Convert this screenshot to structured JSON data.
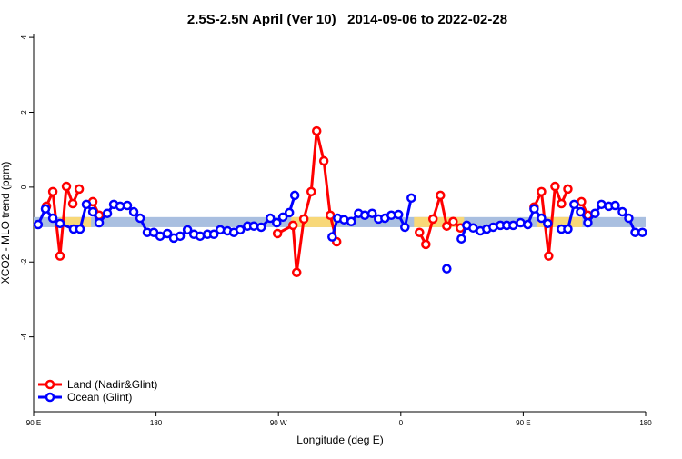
{
  "chart_data": {
    "type": "line",
    "title": "2.5S-2.5N April (Ver 10)   2014-09-06 to 2022-02-28",
    "x_label": "Longitude (deg E)",
    "y_label": "XCO2 - MLO trend (ppm)",
    "xlim": [
      90,
      540
    ],
    "ylim": [
      -6,
      4.1
    ],
    "xticks": [
      {
        "value": 90,
        "label": "90 E"
      },
      {
        "value": 180,
        "label": "180"
      },
      {
        "value": 270,
        "label": "90 W"
      },
      {
        "value": 360,
        "label": "0"
      },
      {
        "value": 450,
        "label": "90 E"
      },
      {
        "value": 540,
        "label": "180"
      }
    ],
    "yticks": [
      4,
      2,
      0,
      -2,
      -4
    ],
    "legend": "bottom-left",
    "bands": [
      {
        "color": "#a9bfe0",
        "x": [
          90,
          540
        ],
        "y": [
          -1.07,
          -0.8
        ]
      },
      {
        "color": "#f8d878",
        "x": [
          108.7,
          132.2
        ],
        "y": [
          -1.07,
          -0.8
        ]
      },
      {
        "color": "#f8d878",
        "x": [
          279.4,
          312.8
        ],
        "y": [
          -1.07,
          -0.8
        ]
      },
      {
        "color": "#f8d878",
        "x": [
          369.7,
          406.5
        ],
        "y": [
          -1.07,
          -0.8
        ]
      },
      {
        "color": "#f8d878",
        "x": [
          460,
          493.4
        ],
        "y": [
          -1.07,
          -0.8
        ]
      }
    ],
    "series": [
      {
        "name": "Land (Nadir&Glint)",
        "color": "#ff0000",
        "x": [
          99.4,
          104.1,
          109.4,
          114.1,
          118.8,
          123.5,
          null,
          133.5,
          138.2,
          null,
          269.3,
          280.7,
          283.4,
          288.7,
          294.1,
          298.1,
          303.4,
          308.1,
          312.8,
          null,
          373.7,
          378.4,
          383.7,
          389.1,
          393.8,
          398.5,
          403.8,
          null,
          458.0,
          463.4,
          468.7,
          473.4,
          478.1,
          482.8,
          null,
          492.8,
          497.5
        ],
        "values": [
          -0.51,
          -0.12,
          -1.84,
          0.02,
          -0.44,
          -0.05,
          null,
          -0.39,
          -0.75,
          null,
          -1.24,
          -1.02,
          -2.28,
          -0.85,
          -0.12,
          1.5,
          0.7,
          -0.75,
          -1.46,
          null,
          -1.21,
          -1.53,
          -0.85,
          -0.22,
          -1.04,
          -0.92,
          -1.09,
          null,
          -0.53,
          -0.12,
          -1.84,
          0.02,
          -0.44,
          -0.05,
          null,
          -0.39,
          -0.75
        ]
      },
      {
        "name": "Ocean (Glint)",
        "color": "#0000ff",
        "x": [
          93.3,
          98.7,
          104.1,
          109.4,
          119.4,
          124.1,
          128.8,
          133.5,
          138.2,
          144.2,
          148.9,
          153.6,
          158.9,
          163.6,
          168.3,
          173.6,
          178.3,
          183.0,
          188.4,
          193.0,
          197.7,
          203.1,
          207.8,
          212.4,
          217.8,
          222.5,
          227.2,
          232.5,
          237.2,
          241.9,
          247.3,
          251.9,
          257.3,
          264.0,
          268.7,
          273.3,
          278.0,
          282.0,
          null,
          309.5,
          313.5,
          318.2,
          323.5,
          328.9,
          333.5,
          338.9,
          343.6,
          348.3,
          353.0,
          358.3,
          363.0,
          367.7,
          null,
          393.8,
          null,
          404.5,
          408.5,
          413.2,
          418.5,
          423.2,
          427.9,
          433.2,
          437.9,
          442.6,
          448.0,
          453.3,
          458.0,
          463.4,
          468.0,
          null,
          478.1,
          482.8,
          487.4,
          492.1,
          497.5,
          502.8,
          507.5,
          512.9,
          517.6,
          522.9,
          527.6,
          532.3,
          537.6
        ],
        "values": [
          -1.0,
          -0.58,
          -0.83,
          -0.97,
          -1.12,
          -1.12,
          -0.46,
          -0.66,
          -0.95,
          -0.7,
          -0.46,
          -0.51,
          -0.49,
          -0.66,
          -0.83,
          -1.21,
          -1.21,
          -1.31,
          -1.24,
          -1.36,
          -1.31,
          -1.14,
          -1.26,
          -1.31,
          -1.26,
          -1.26,
          -1.14,
          -1.17,
          -1.21,
          -1.14,
          -1.04,
          -1.04,
          -1.07,
          -0.83,
          -0.95,
          -0.8,
          -0.68,
          -0.22,
          null,
          -1.33,
          -0.83,
          -0.87,
          -0.92,
          -0.7,
          -0.75,
          -0.7,
          -0.85,
          -0.83,
          -0.75,
          -0.73,
          -1.07,
          -0.29,
          null,
          -2.18,
          null,
          -1.38,
          -1.02,
          -1.09,
          -1.17,
          -1.12,
          -1.07,
          -1.02,
          -1.02,
          -1.02,
          -0.95,
          -1.0,
          -0.58,
          -0.83,
          -0.97,
          null,
          -1.12,
          -1.12,
          -0.46,
          -0.66,
          -0.95,
          -0.7,
          -0.46,
          -0.51,
          -0.49,
          -0.66,
          -0.83,
          -1.21,
          -1.21
        ]
      }
    ]
  }
}
